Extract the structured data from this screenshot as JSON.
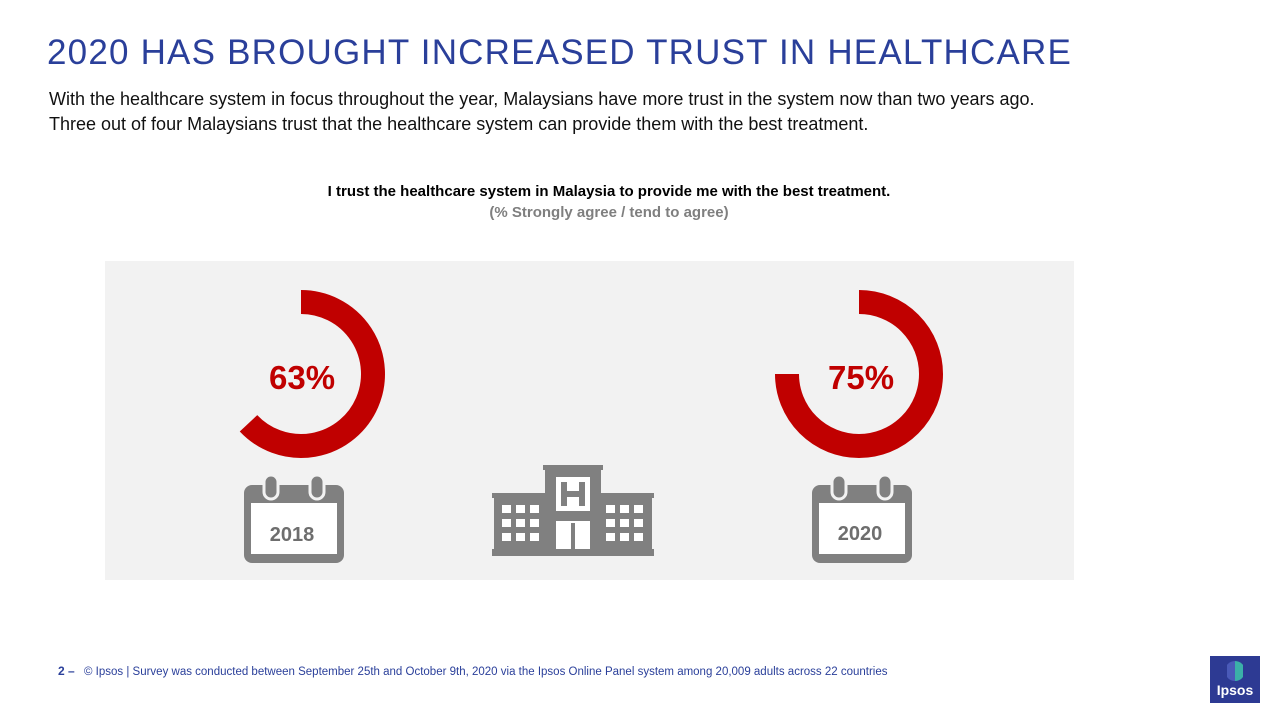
{
  "header": {
    "title": "2020 HAS BROUGHT INCREASED TRUST IN HEALTHCARE",
    "line1": "With the healthcare system in focus throughout  the year, Malaysians have more trust in the system now than two years ago.",
    "line2": "Three  out of four Malaysians trust that the healthcare system can provide them with the best treatment."
  },
  "chart_data": {
    "type": "pie",
    "title": "I trust the healthcare system in Malaysia to provide me with the best treatment.",
    "subtitle": "(% Strongly agree / tend to agree)",
    "categories": [
      "2018",
      "2020"
    ],
    "values": [
      63,
      75
    ],
    "labels": [
      "63%",
      "75%"
    ],
    "unit": "%"
  },
  "colors": {
    "accent": "#c00000",
    "brand": "#2a3f9a",
    "icon": "#808080",
    "panel": "#f2f2f2"
  },
  "icons": {
    "calendar": "calendar-icon",
    "hospital": "hospital-icon",
    "logo": "ipsos-logo"
  },
  "footer": {
    "page_number": "2 –",
    "source": "© Ipsos | Survey was conducted between September 25th and October 9th, 2020 via the Ipsos Online Panel system among 20,009 adults across 22 countries",
    "logo_text": "Ipsos"
  }
}
